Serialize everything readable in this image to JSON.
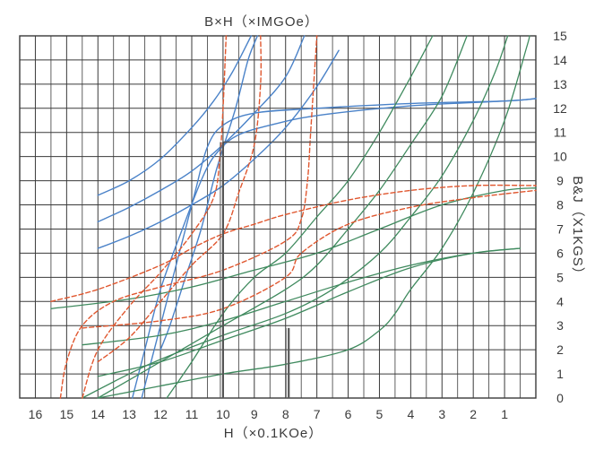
{
  "chart_data": {
    "type": "line",
    "title": "B×H（×IMGOe）",
    "xlabel": "H（×0.1KOe）",
    "ylabel": "B&J（X1KGS）",
    "x_reversed": true,
    "xlim": [
      16.5,
      0
    ],
    "ylim": [
      0,
      15
    ],
    "x_ticks": [
      16,
      15,
      14,
      13,
      12,
      11,
      10,
      9,
      8,
      7,
      6,
      5,
      4,
      3,
      2,
      1
    ],
    "y_ticks": [
      0,
      1,
      2,
      3,
      4,
      5,
      6,
      7,
      8,
      9,
      10,
      11,
      12,
      13,
      14,
      15
    ],
    "grid": true,
    "colors": {
      "blue": "#4a82c8",
      "green": "#3f8a5e",
      "red": "#e0572f",
      "grid": "#3a3a3a",
      "marker": "#555555"
    },
    "series": [
      {
        "group": "energy-product",
        "style": "blue-solid",
        "points": [
          [
            12.0,
            2.0
          ],
          [
            11.7,
            3.0
          ],
          [
            11.2,
            5.0
          ],
          [
            10.7,
            7.0
          ],
          [
            10.2,
            9.5
          ],
          [
            9.6,
            12.0
          ],
          [
            9.2,
            14.0
          ],
          [
            8.9,
            15.0
          ]
        ]
      },
      {
        "group": "energy-product",
        "style": "blue-solid",
        "points": [
          [
            14.0,
            8.4
          ],
          [
            13.0,
            9.0
          ],
          [
            12.0,
            9.9
          ],
          [
            11.0,
            11.2
          ],
          [
            10.3,
            12.3
          ],
          [
            9.7,
            13.5
          ],
          [
            9.1,
            15.0
          ]
        ]
      },
      {
        "group": "energy-product",
        "style": "blue-solid",
        "points": [
          [
            14.0,
            7.3
          ],
          [
            13.0,
            7.9
          ],
          [
            12.0,
            8.6
          ],
          [
            11.0,
            9.4
          ],
          [
            10.0,
            10.5
          ],
          [
            9.0,
            11.8
          ],
          [
            8.0,
            13.3
          ],
          [
            7.4,
            15.0
          ]
        ]
      },
      {
        "group": "energy-product",
        "style": "blue-solid",
        "points": [
          [
            14.0,
            6.2
          ],
          [
            13.0,
            6.7
          ],
          [
            12.0,
            7.3
          ],
          [
            11.0,
            8.0
          ],
          [
            10.0,
            8.8
          ],
          [
            9.0,
            9.9
          ],
          [
            8.0,
            11.2
          ],
          [
            7.0,
            12.9
          ],
          [
            6.3,
            14.4
          ]
        ]
      },
      {
        "group": "intrinsic",
        "style": "blue-solid",
        "points": [
          [
            12.6,
            0.0
          ],
          [
            12.3,
            1.5
          ],
          [
            11.9,
            3.5
          ],
          [
            11.4,
            6.0
          ],
          [
            10.9,
            8.5
          ],
          [
            10.5,
            10.4
          ],
          [
            10.0,
            11.3
          ],
          [
            9.0,
            11.8
          ],
          [
            7.0,
            12.0
          ],
          [
            4.0,
            12.2
          ],
          [
            1.0,
            12.3
          ],
          [
            0.0,
            12.4
          ]
        ]
      },
      {
        "group": "intrinsic",
        "style": "blue-solid",
        "points": [
          [
            12.9,
            0.0
          ],
          [
            12.5,
            2.0
          ],
          [
            12.0,
            4.5
          ],
          [
            11.3,
            7.0
          ],
          [
            10.6,
            9.3
          ],
          [
            10.1,
            10.3
          ],
          [
            9.5,
            10.9
          ],
          [
            8.5,
            11.3
          ],
          [
            7.0,
            11.7
          ],
          [
            4.0,
            12.1
          ],
          [
            1.0,
            12.3
          ],
          [
            0.0,
            12.4
          ]
        ]
      },
      {
        "group": "recoil",
        "style": "green-solid",
        "points": [
          [
            14.0,
            0.0
          ],
          [
            12.0,
            0.5
          ],
          [
            10.0,
            1.0
          ],
          [
            8.0,
            1.4
          ],
          [
            6.0,
            2.0
          ],
          [
            5.0,
            2.8
          ],
          [
            4.5,
            3.5
          ],
          [
            4.0,
            4.5
          ],
          [
            3.0,
            6.2
          ],
          [
            2.0,
            8.5
          ],
          [
            1.0,
            11.5
          ],
          [
            0.3,
            14.5
          ],
          [
            0.2,
            15.0
          ]
        ]
      },
      {
        "group": "recoil",
        "style": "green-solid",
        "points": [
          [
            14.5,
            0.0
          ],
          [
            13.0,
            1.0
          ],
          [
            12.0,
            1.6
          ],
          [
            10.0,
            2.6
          ],
          [
            8.0,
            3.5
          ],
          [
            6.5,
            4.5
          ],
          [
            5.0,
            6.0
          ],
          [
            4.0,
            7.5
          ],
          [
            3.0,
            9.2
          ],
          [
            2.0,
            11.5
          ],
          [
            1.3,
            13.5
          ],
          [
            0.9,
            15.0
          ]
        ]
      },
      {
        "group": "recoil",
        "style": "green-solid",
        "points": [
          [
            14.0,
            0.0
          ],
          [
            12.0,
            1.5
          ],
          [
            10.0,
            3.0
          ],
          [
            8.0,
            4.5
          ],
          [
            7.0,
            5.5
          ],
          [
            6.0,
            7.0
          ],
          [
            5.0,
            8.6
          ],
          [
            4.0,
            10.5
          ],
          [
            3.0,
            12.5
          ],
          [
            2.2,
            15.0
          ]
        ]
      },
      {
        "group": "recoil",
        "style": "green-solid",
        "points": [
          [
            11.8,
            0.0
          ],
          [
            11.0,
            1.5
          ],
          [
            10.0,
            3.5
          ],
          [
            9.0,
            5.0
          ],
          [
            8.0,
            6.0
          ],
          [
            7.0,
            7.5
          ],
          [
            6.0,
            9.0
          ],
          [
            5.0,
            11.0
          ],
          [
            4.0,
            13.3
          ],
          [
            3.3,
            15.0
          ]
        ]
      },
      {
        "group": "recoil",
        "style": "green-solid",
        "points": [
          [
            14.5,
            2.2
          ],
          [
            12.0,
            2.6
          ],
          [
            10.0,
            3.2
          ],
          [
            8.0,
            4.0
          ],
          [
            6.0,
            4.8
          ],
          [
            4.0,
            5.5
          ],
          [
            2.0,
            6.0
          ],
          [
            0.5,
            6.2
          ]
        ]
      },
      {
        "group": "recoil",
        "style": "green-solid",
        "points": [
          [
            14.0,
            0.9
          ],
          [
            12.0,
            1.5
          ],
          [
            10.0,
            2.4
          ],
          [
            8.0,
            3.3
          ],
          [
            6.0,
            4.4
          ],
          [
            4.0,
            5.4
          ],
          [
            2.0,
            6.0
          ],
          [
            0.5,
            6.2
          ]
        ]
      },
      {
        "group": "recoil",
        "style": "green-solid",
        "points": [
          [
            15.5,
            3.7
          ],
          [
            13.0,
            4.1
          ],
          [
            11.0,
            4.6
          ],
          [
            9.0,
            5.3
          ],
          [
            7.0,
            6.0
          ],
          [
            5.0,
            7.0
          ],
          [
            3.0,
            8.0
          ],
          [
            1.0,
            8.6
          ],
          [
            0.0,
            8.7
          ]
        ]
      },
      {
        "group": "demagnetization",
        "style": "red-dashed",
        "points": [
          [
            15.2,
            0.0
          ],
          [
            15.0,
            1.5
          ],
          [
            14.5,
            3.0
          ],
          [
            13.5,
            4.0
          ],
          [
            12.0,
            4.6
          ],
          [
            10.0,
            5.3
          ],
          [
            8.0,
            6.5
          ],
          [
            7.5,
            7.4
          ],
          [
            7.3,
            9.0
          ],
          [
            7.2,
            11.0
          ],
          [
            7.1,
            13.0
          ],
          [
            7.0,
            15.0
          ]
        ]
      },
      {
        "group": "demagnetization",
        "style": "red-dashed",
        "points": [
          [
            14.5,
            0.0
          ],
          [
            14.0,
            2.0
          ],
          [
            13.0,
            3.8
          ],
          [
            12.0,
            5.2
          ],
          [
            11.0,
            6.8
          ],
          [
            10.3,
            8.3
          ],
          [
            10.1,
            10.0
          ],
          [
            10.0,
            12.0
          ],
          [
            9.9,
            15.0
          ]
        ]
      },
      {
        "group": "demagnetization",
        "style": "red-dashed",
        "points": [
          [
            14.0,
            1.5
          ],
          [
            13.0,
            2.5
          ],
          [
            12.0,
            4.0
          ],
          [
            11.0,
            5.5
          ],
          [
            10.0,
            6.8
          ],
          [
            9.5,
            8.5
          ],
          [
            9.0,
            10.5
          ],
          [
            8.8,
            13.0
          ],
          [
            8.8,
            15.0
          ]
        ]
      },
      {
        "group": "demagnetization",
        "style": "red-dashed",
        "points": [
          [
            15.5,
            4.0
          ],
          [
            14.0,
            4.5
          ],
          [
            12.0,
            5.5
          ],
          [
            11.0,
            6.2
          ],
          [
            10.0,
            6.8
          ],
          [
            9.0,
            7.2
          ],
          [
            8.0,
            7.6
          ],
          [
            6.0,
            8.2
          ],
          [
            4.0,
            8.6
          ],
          [
            2.0,
            8.8
          ],
          [
            0.0,
            8.8
          ]
        ]
      },
      {
        "group": "demagnetization",
        "style": "red-dashed",
        "points": [
          [
            14.5,
            2.9
          ],
          [
            12.0,
            3.2
          ],
          [
            10.0,
            3.7
          ],
          [
            8.0,
            5.0
          ],
          [
            7.5,
            6.0
          ],
          [
            6.0,
            7.2
          ],
          [
            4.0,
            7.9
          ],
          [
            2.0,
            8.3
          ],
          [
            0.0,
            8.6
          ]
        ]
      }
    ],
    "markers": [
      {
        "x": 10.0,
        "y": 10.6,
        "to_x": 0.0
      },
      {
        "x": 7.9,
        "y": 2.9
      }
    ]
  }
}
